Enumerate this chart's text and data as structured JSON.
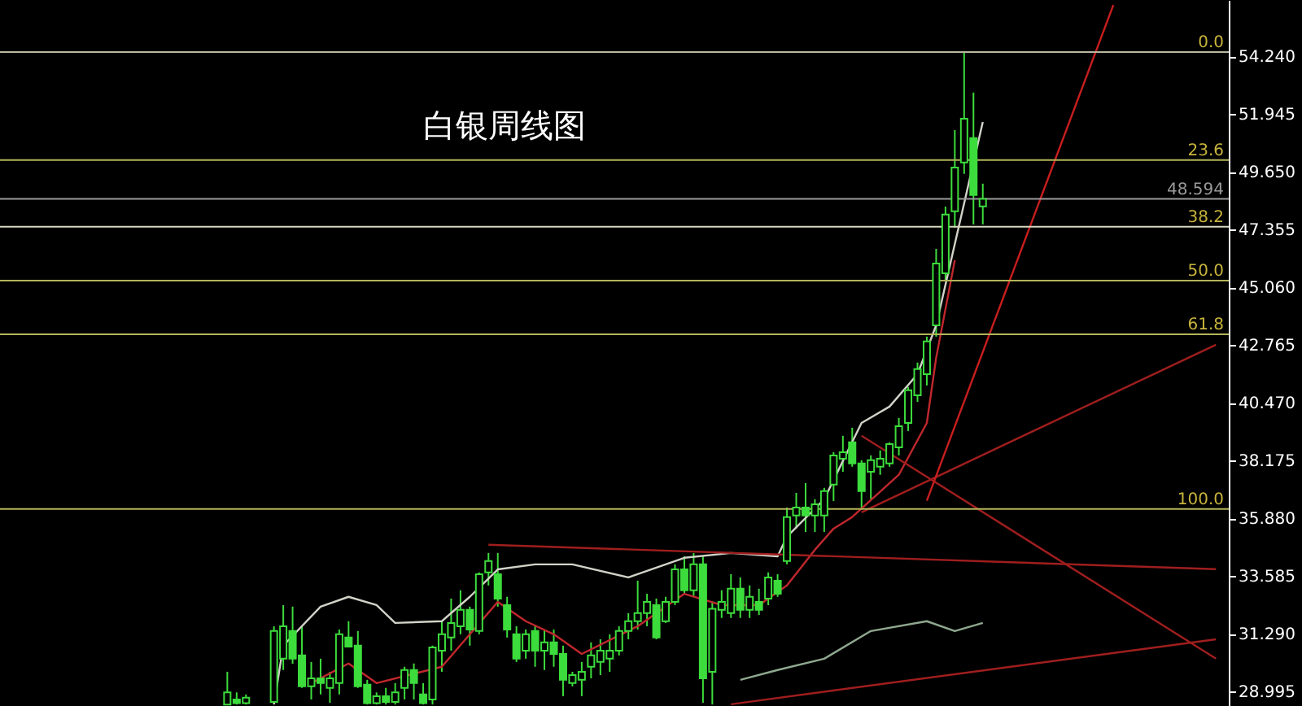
{
  "chart_data": {
    "type": "candlestick",
    "title": "白银周线图",
    "color": "#3cdc3c",
    "categories": [
      null,
      null,
      null,
      null,
      null,
      null,
      null,
      null,
      null,
      null,
      null,
      null,
      null,
      null,
      null,
      null,
      null,
      null,
      null,
      null,
      null,
      null,
      null,
      null,
      null,
      null,
      null,
      null,
      null,
      null,
      null,
      null,
      null,
      null,
      null,
      null,
      null,
      null,
      null,
      null,
      null,
      null,
      null,
      null,
      null,
      null,
      null,
      null,
      null,
      null,
      null,
      null,
      null,
      null,
      null,
      null,
      null,
      null,
      null,
      null,
      null,
      null,
      null,
      null,
      null,
      null,
      null,
      null,
      null,
      null,
      null,
      null,
      null,
      null,
      null,
      null,
      null,
      null,
      null,
      null,
      null,
      null,
      null,
      null,
      null,
      null,
      null,
      null,
      null,
      null,
      null,
      null,
      null,
      null,
      null,
      null,
      null,
      null,
      null,
      null,
      null,
      null,
      null,
      null,
      null,
      null,
      null,
      null,
      null,
      null,
      null,
      null,
      null,
      null,
      null,
      null,
      null,
      null,
      null,
      null,
      null,
      null,
      null,
      null,
      null,
      null,
      null,
      null,
      null,
      null
    ],
    "ohlc": [
      null,
      null,
      null,
      null,
      null,
      null,
      null,
      null,
      null,
      null,
      null,
      null,
      null,
      null,
      null,
      null,
      null,
      null,
      null,
      null,
      null,
      null,
      null,
      [
        28.5,
        29.8,
        28.5,
        28.98
      ],
      [
        28.7,
        28.98,
        28.5,
        28.55
      ],
      [
        28.55,
        28.9,
        28.5,
        28.77
      ],
      null,
      null,
      [
        28.6,
        31.61,
        28.5,
        31.42
      ],
      [
        30.32,
        32.45,
        29.87,
        31.61
      ],
      [
        31.42,
        32.39,
        30.12,
        30.32
      ],
      [
        30.45,
        31.61,
        29.16,
        29.22
      ],
      [
        29.22,
        30.19,
        28.7,
        29.54
      ],
      [
        29.54,
        30.32,
        28.9,
        29.35
      ],
      [
        29.16,
        29.8,
        28.57,
        29.54
      ],
      [
        29.35,
        31.48,
        28.9,
        31.29
      ],
      [
        31.16,
        31.81,
        30.77,
        30.8
      ],
      [
        30.84,
        31.42,
        29.16,
        29.22
      ],
      [
        29.29,
        29.48,
        28.5,
        28.55
      ],
      [
        28.55,
        28.98,
        28.5,
        28.83
      ],
      [
        28.83,
        29.16,
        28.5,
        28.6
      ],
      [
        28.6,
        29.35,
        28.5,
        28.98
      ],
      [
        29.16,
        30.0,
        28.7,
        29.87
      ],
      [
        29.87,
        30.13,
        28.7,
        29.35
      ],
      [
        28.9,
        29.35,
        28.5,
        28.55
      ],
      [
        28.7,
        30.84,
        28.5,
        30.77
      ],
      [
        30.64,
        31.81,
        29.8,
        31.29
      ],
      [
        31.16,
        32.71,
        30.64,
        31.74
      ],
      [
        31.61,
        33.04,
        31.29,
        32.26
      ],
      [
        32.26,
        32.39,
        30.84,
        31.48
      ],
      [
        31.42,
        33.75,
        31.29,
        33.68
      ],
      [
        33.75,
        34.52,
        33.23,
        34.2
      ],
      [
        33.68,
        34.52,
        32.39,
        32.71
      ],
      [
        32.45,
        32.78,
        31.16,
        31.48
      ],
      [
        31.29,
        31.61,
        30.19,
        30.32
      ],
      [
        30.64,
        31.48,
        30.32,
        31.29
      ],
      [
        31.42,
        31.61,
        30.0,
        30.64
      ],
      [
        30.64,
        31.48,
        29.87,
        30.97
      ],
      [
        30.97,
        31.48,
        30.0,
        30.51
      ],
      [
        30.51,
        30.84,
        28.83,
        29.48
      ],
      [
        29.35,
        29.8,
        29.22,
        29.67
      ],
      [
        29.48,
        30.19,
        28.83,
        29.8
      ],
      [
        30.0,
        30.97,
        29.54,
        30.45
      ],
      [
        30.19,
        31.09,
        29.67,
        30.64
      ],
      [
        30.32,
        31.29,
        29.8,
        30.64
      ],
      [
        30.64,
        31.61,
        30.45,
        31.42
      ],
      [
        31.42,
        32.13,
        31.09,
        31.81
      ],
      [
        31.81,
        33.42,
        31.48,
        32.13
      ],
      [
        32.13,
        32.9,
        31.61,
        32.58
      ],
      [
        32.45,
        32.71,
        31.09,
        31.16
      ],
      [
        31.81,
        32.78,
        31.74,
        32.58
      ],
      [
        32.58,
        34.07,
        32.45,
        33.87
      ],
      [
        33.87,
        34.39,
        32.9,
        33.04
      ],
      [
        33.04,
        34.52,
        32.78,
        34.07
      ],
      [
        34.07,
        34.39,
        28.57,
        29.54
      ],
      [
        29.8,
        32.6,
        28.5,
        32.3
      ],
      [
        32.26,
        33.04,
        31.94,
        32.58
      ],
      [
        32.13,
        33.68,
        31.94,
        33.1
      ],
      [
        33.1,
        33.55,
        31.94,
        32.26
      ],
      [
        32.26,
        33.23,
        31.94,
        32.78
      ],
      [
        32.58,
        33.1,
        32.06,
        32.26
      ],
      [
        32.71,
        33.75,
        32.45,
        33.55
      ],
      [
        33.42,
        33.68,
        32.78,
        32.9
      ],
      [
        34.2,
        36.33,
        34.07,
        35.95
      ],
      [
        36.01,
        36.91,
        35.49,
        36.33
      ],
      [
        36.33,
        37.3,
        35.36,
        36.01
      ],
      [
        36.01,
        36.66,
        35.36,
        36.46
      ],
      [
        36.01,
        37.11,
        35.36,
        36.98
      ],
      [
        37.24,
        38.53,
        36.59,
        38.4
      ],
      [
        38.27,
        39.18,
        37.75,
        38.53
      ],
      [
        38.92,
        39.5,
        37.95,
        38.08
      ],
      [
        38.08,
        38.21,
        36.27,
        36.98
      ],
      [
        37.75,
        38.4,
        36.66,
        38.21
      ],
      [
        37.95,
        38.6,
        37.63,
        38.27
      ],
      [
        38.08,
        38.92,
        37.95,
        38.85
      ],
      [
        38.72,
        39.89,
        38.4,
        39.56
      ],
      [
        39.69,
        41.12,
        39.37,
        40.99
      ],
      [
        40.79,
        42.09,
        40.53,
        41.83
      ],
      [
        41.63,
        43.12,
        41.18,
        42.93
      ],
      [
        43.57,
        46.61,
        43.12,
        46.03
      ],
      [
        45.64,
        48.29,
        45.32,
        47.97
      ],
      [
        48.1,
        51.33,
        47.45,
        49.84
      ],
      [
        50.04,
        54.43,
        49.59,
        51.78
      ],
      [
        51.01,
        52.82,
        47.58,
        48.75
      ],
      [
        48.3,
        49.2,
        47.58,
        48.594
      ],
      null,
      null,
      null,
      null,
      null,
      null,
      null,
      null,
      null,
      null,
      null,
      null,
      null,
      null,
      null,
      null,
      null,
      null,
      null,
      null,
      null,
      null,
      null,
      null,
      null
    ],
    "series": [
      {
        "type": "line",
        "color": "#d2d2c8",
        "values": [
          null,
          null,
          null,
          null,
          null,
          null,
          null,
          null,
          null,
          null,
          null,
          null,
          null,
          null,
          null,
          null,
          null,
          null,
          null,
          null,
          null,
          null,
          null,
          null,
          null,
          null,
          null,
          null,
          28.51,
          30.84,
          null,
          null,
          null,
          32.39,
          null,
          null,
          32.78,
          null,
          null,
          32.45,
          null,
          31.74,
          null,
          null,
          null,
          null,
          31.81,
          null,
          null,
          32.78,
          null,
          null,
          33.87,
          null,
          null,
          null,
          34.07,
          null,
          null,
          null,
          34.07,
          null,
          null,
          null,
          null,
          null,
          33.55,
          null,
          null,
          null,
          null,
          null,
          34.33,
          null,
          null,
          null,
          null,
          34.52,
          null,
          null,
          null,
          null,
          34.39,
          35.17,
          null,
          null,
          null,
          36.66,
          null,
          null,
          null,
          39.69,
          null,
          null,
          40.34,
          null,
          null,
          41.63,
          null,
          43.57,
          null,
          null,
          null,
          null,
          51.65,
          null,
          null,
          null,
          null,
          null,
          null,
          null,
          null,
          null,
          null,
          null,
          null,
          null,
          null,
          null,
          null,
          null,
          null,
          null,
          null,
          null,
          null,
          null,
          null,
          null
        ]
      },
      {
        "type": "line",
        "color": "#8fa88f",
        "values": [
          null,
          null,
          null,
          null,
          null,
          null,
          null,
          null,
          null,
          null,
          null,
          null,
          null,
          null,
          null,
          null,
          null,
          null,
          null,
          null,
          null,
          null,
          null,
          null,
          null,
          null,
          null,
          null,
          null,
          null,
          null,
          null,
          null,
          null,
          null,
          null,
          null,
          null,
          null,
          null,
          null,
          null,
          null,
          null,
          null,
          null,
          null,
          null,
          null,
          null,
          null,
          null,
          null,
          null,
          null,
          null,
          null,
          null,
          null,
          null,
          null,
          null,
          null,
          null,
          null,
          null,
          null,
          null,
          null,
          null,
          null,
          null,
          null,
          null,
          null,
          null,
          null,
          null,
          29.48,
          null,
          null,
          null,
          29.87,
          null,
          null,
          null,
          null,
          30.32,
          null,
          null,
          null,
          null,
          31.42,
          null,
          null,
          null,
          null,
          null,
          31.81,
          null,
          null,
          31.42,
          null,
          null,
          31.74,
          null,
          null,
          null,
          null,
          null,
          null,
          null,
          null,
          null,
          null,
          null,
          null,
          null,
          null,
          null,
          null,
          null,
          null,
          null,
          null,
          null,
          null,
          null,
          null,
          null
        ]
      },
      {
        "type": "line",
        "color": "#c0282d",
        "values": [
          null,
          null,
          null,
          null,
          null,
          null,
          null,
          null,
          null,
          null,
          null,
          null,
          null,
          null,
          null,
          null,
          null,
          null,
          null,
          null,
          null,
          null,
          null,
          null,
          null,
          null,
          null,
          null,
          null,
          null,
          null,
          null,
          29.35,
          null,
          null,
          null,
          30.13,
          null,
          null,
          29.35,
          null,
          null,
          null,
          null,
          null,
          null,
          30.0,
          null,
          null,
          null,
          null,
          null,
          32.58,
          null,
          null,
          31.81,
          null,
          null,
          31.29,
          null,
          null,
          30.51,
          null,
          null,
          null,
          null,
          null,
          31.61,
          null,
          null,
          null,
          null,
          32.9,
          null,
          null,
          null,
          32.45,
          null,
          null,
          null,
          32.45,
          null,
          null,
          33.23,
          null,
          null,
          34.65,
          null,
          35.49,
          null,
          35.95,
          null,
          null,
          null,
          null,
          37.63,
          null,
          null,
          39.69,
          42.28,
          null,
          46.16,
          null,
          null,
          null,
          null,
          null,
          null,
          null,
          null,
          null,
          null,
          null,
          null,
          null,
          null,
          null,
          null,
          null,
          null,
          null,
          null,
          null,
          null,
          null,
          null,
          null,
          null,
          null,
          null
        ]
      },
      {
        "type": "line",
        "color": "#a01e1e",
        "values": [
          null,
          null,
          null,
          null,
          null,
          null,
          null,
          null,
          null,
          null,
          null,
          null,
          null,
          null,
          null,
          null,
          null,
          null,
          null,
          null,
          null,
          null,
          null,
          null,
          null,
          null,
          null,
          null,
          null,
          null,
          null,
          null,
          null,
          null,
          null,
          null,
          null,
          null,
          null,
          null,
          null,
          null,
          null,
          null,
          null,
          null,
          null,
          null,
          null,
          null,
          null,
          34.85,
          null,
          null,
          null,
          null,
          null,
          null,
          null,
          null,
          null,
          null,
          null,
          null,
          null,
          null,
          null,
          null,
          null,
          null,
          null,
          null,
          null,
          null,
          null,
          null,
          null,
          null,
          null,
          null,
          null,
          null,
          null,
          null,
          null,
          null,
          null,
          null,
          null,
          null,
          null,
          null,
          null,
          null,
          null,
          null,
          null,
          null,
          null,
          null,
          null,
          null,
          null,
          null,
          null,
          null,
          null,
          null,
          null,
          null,
          null,
          null,
          null,
          null,
          null,
          null,
          null,
          null,
          null,
          null,
          null,
          null,
          null,
          null,
          null,
          null,
          null,
          null,
          null,
          33.88
        ]
      },
      {
        "type": "line",
        "color": "#a01e1e",
        "values": [
          null,
          null,
          null,
          null,
          null,
          null,
          null,
          null,
          null,
          null,
          null,
          null,
          null,
          null,
          null,
          null,
          null,
          null,
          null,
          null,
          null,
          null,
          null,
          null,
          null,
          null,
          null,
          null,
          null,
          null,
          null,
          null,
          null,
          null,
          null,
          null,
          null,
          null,
          null,
          null,
          null,
          null,
          null,
          null,
          null,
          null,
          null,
          null,
          null,
          null,
          null,
          null,
          null,
          null,
          null,
          null,
          null,
          null,
          null,
          null,
          null,
          null,
          null,
          null,
          null,
          null,
          null,
          null,
          null,
          null,
          null,
          null,
          null,
          null,
          null,
          null,
          null,
          null,
          null,
          null,
          null,
          null,
          null,
          null,
          null,
          null,
          null,
          null,
          null,
          null,
          null,
          36.14,
          null,
          null,
          null,
          null,
          null,
          null,
          null,
          null,
          null,
          null,
          null,
          null,
          null,
          null,
          null,
          null,
          null,
          null,
          null,
          null,
          null,
          null,
          null,
          null,
          null,
          null,
          null,
          null,
          null,
          null,
          null,
          null,
          null,
          null,
          null,
          null,
          null,
          42.8
        ]
      },
      {
        "type": "line",
        "color": "#a01e1e",
        "values": [
          null,
          null,
          null,
          null,
          null,
          null,
          null,
          null,
          null,
          null,
          null,
          null,
          null,
          null,
          null,
          null,
          null,
          null,
          null,
          null,
          null,
          null,
          null,
          null,
          null,
          null,
          null,
          null,
          null,
          null,
          null,
          null,
          null,
          null,
          null,
          null,
          null,
          null,
          null,
          null,
          null,
          null,
          null,
          null,
          null,
          null,
          null,
          null,
          null,
          null,
          null,
          null,
          null,
          null,
          null,
          null,
          null,
          null,
          null,
          null,
          null,
          null,
          null,
          null,
          null,
          null,
          null,
          null,
          null,
          null,
          null,
          null,
          null,
          null,
          null,
          null,
          null,
          null,
          null,
          null,
          null,
          null,
          null,
          null,
          null,
          null,
          null,
          null,
          null,
          null,
          null,
          39.18,
          null,
          null,
          null,
          null,
          null,
          null,
          null,
          null,
          null,
          null,
          null,
          null,
          null,
          null,
          null,
          null,
          null,
          null,
          null,
          null,
          null,
          null,
          null,
          null,
          null,
          null,
          null,
          null,
          null,
          null,
          null,
          null,
          null,
          null,
          null,
          null,
          null,
          30.32
        ]
      },
      {
        "type": "line",
        "color": "#a01e1e",
        "values": [
          null,
          null,
          null,
          null,
          null,
          null,
          null,
          null,
          null,
          null,
          null,
          null,
          null,
          null,
          null,
          null,
          null,
          null,
          null,
          null,
          null,
          null,
          null,
          null,
          null,
          null,
          null,
          null,
          null,
          null,
          null,
          null,
          null,
          null,
          null,
          null,
          null,
          null,
          null,
          null,
          null,
          null,
          null,
          null,
          null,
          null,
          null,
          null,
          null,
          null,
          null,
          null,
          null,
          null,
          null,
          null,
          null,
          null,
          null,
          null,
          null,
          null,
          null,
          null,
          null,
          null,
          null,
          null,
          null,
          null,
          null,
          null,
          null,
          null,
          null,
          null,
          null,
          28.51,
          null,
          null,
          null,
          null,
          null,
          null,
          null,
          null,
          null,
          null,
          null,
          null,
          null,
          null,
          null,
          null,
          null,
          null,
          null,
          null,
          null,
          null,
          null,
          null,
          null,
          null,
          null,
          null,
          null,
          null,
          null,
          null,
          null,
          null,
          null,
          null,
          null,
          null,
          null,
          null,
          null,
          null,
          null,
          null,
          null,
          null,
          null,
          null,
          null,
          null,
          null,
          31.09
        ]
      },
      {
        "type": "line",
        "color": "#c81e1e",
        "values": [
          null,
          null,
          null,
          null,
          null,
          null,
          null,
          null,
          null,
          null,
          null,
          null,
          null,
          null,
          null,
          null,
          null,
          null,
          null,
          null,
          null,
          null,
          null,
          null,
          null,
          null,
          null,
          null,
          null,
          null,
          null,
          null,
          null,
          null,
          null,
          null,
          null,
          null,
          null,
          null,
          null,
          null,
          null,
          null,
          null,
          null,
          null,
          null,
          null,
          null,
          null,
          null,
          null,
          null,
          null,
          null,
          null,
          null,
          null,
          null,
          null,
          null,
          null,
          null,
          null,
          null,
          null,
          null,
          null,
          null,
          null,
          null,
          null,
          null,
          null,
          null,
          null,
          null,
          null,
          null,
          null,
          null,
          null,
          null,
          null,
          null,
          null,
          null,
          null,
          null,
          null,
          null,
          null,
          null,
          null,
          null,
          null,
          null,
          36.6,
          null,
          null,
          null,
          null,
          null,
          null,
          null,
          null,
          null,
          null,
          null,
          null,
          null,
          null,
          null,
          null,
          null,
          null,
          null,
          56.3,
          null,
          null,
          null,
          null,
          null,
          null,
          null,
          null,
          null,
          null,
          null
        ]
      }
    ],
    "ref_lines": [
      {
        "axis": "y",
        "value": 54.43,
        "color": "#b8b8a0"
      },
      {
        "axis": "y",
        "value": 50.14,
        "color": "#b4b45a"
      },
      {
        "axis": "y",
        "value": 48.594,
        "label": "48.594",
        "color": "#9a9a9a"
      },
      {
        "axis": "y",
        "value": 47.49,
        "color": "#d8d8c0"
      },
      {
        "axis": "y",
        "value": 45.35,
        "color": "#b4b45a"
      },
      {
        "axis": "y",
        "value": 43.21,
        "color": "#b4b45a"
      },
      {
        "axis": "y",
        "value": 36.27,
        "color": "#b4b45a"
      }
    ],
    "annotations": [
      {
        "text": "0.0",
        "y": 54.43
      },
      {
        "text": "23.6",
        "y": 50.14
      },
      {
        "text": "38.2",
        "y": 47.49
      },
      {
        "text": "50.0",
        "y": 45.35
      },
      {
        "text": "61.8",
        "y": 43.21
      },
      {
        "text": "100.0",
        "y": 36.27
      }
    ],
    "ylim": [
      28.44,
      56.5
    ],
    "yticks": [
      {
        "value": 28.995,
        "label": "28.995"
      },
      {
        "value": 31.29,
        "label": "31.290"
      },
      {
        "value": 33.585,
        "label": "33.585"
      },
      {
        "value": 35.88,
        "label": "35.880"
      },
      {
        "value": 38.175,
        "label": "38.175"
      },
      {
        "value": 40.47,
        "label": "40.470"
      },
      {
        "value": 42.765,
        "label": "42.765"
      },
      {
        "value": 45.06,
        "label": "45.060"
      },
      {
        "value": 47.355,
        "label": "47.355"
      },
      {
        "value": 49.65,
        "label": "49.650"
      },
      {
        "value": 51.945,
        "label": "51.945"
      },
      {
        "value": 54.24,
        "label": "54.240"
      }
    ],
    "tick_labels": "y"
  }
}
